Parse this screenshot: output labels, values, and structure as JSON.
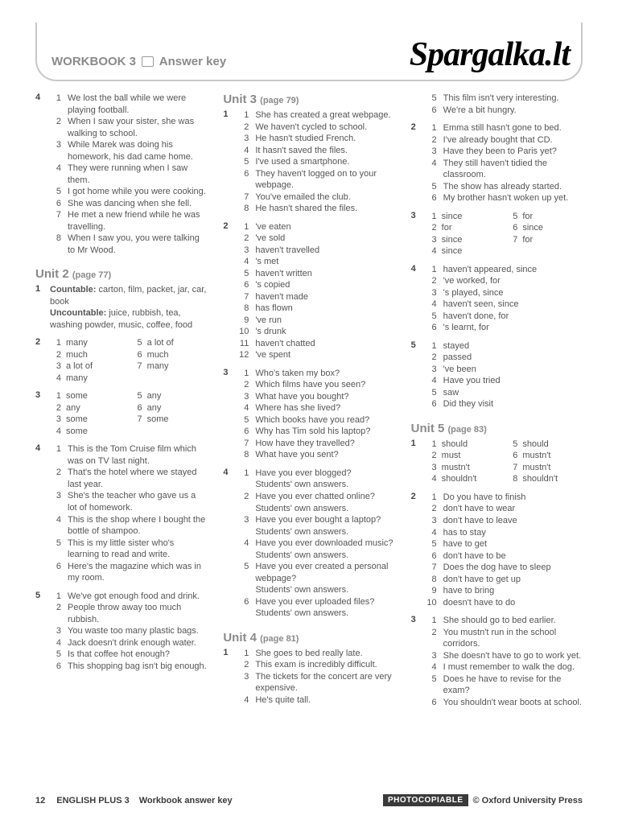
{
  "colors": {
    "text": "#555555",
    "heading_gray": "#8a8a8a",
    "border_gray": "#c8c8c8",
    "watermark": "#000000",
    "footer_dark": "#3a3a3a",
    "bg": "#ffffff"
  },
  "typography": {
    "body_pt": 11,
    "heading_pt": 15,
    "watermark_pt": 42,
    "line_height": 1.32
  },
  "header": {
    "workbook": "WORKBOOK 3",
    "answer_key": "Answer key"
  },
  "watermark": "Spargalka.lt",
  "footer": {
    "page_num": "12",
    "title1": "ENGLISH PLUS 3",
    "title2": "Workbook answer key",
    "photocopy": "PHOTOCOPIABLE",
    "copyright": "© Oxford University Press"
  },
  "col1": {
    "ex4": {
      "num": "4",
      "items": [
        [
          "1",
          "We lost the ball while we were playing football."
        ],
        [
          "2",
          "When I saw your sister, she was walking to school."
        ],
        [
          "3",
          "While Marek was doing his homework, his dad came home."
        ],
        [
          "4",
          "They were running when I saw them."
        ],
        [
          "5",
          "I got home while you were cooking."
        ],
        [
          "6",
          "She was dancing when she fell."
        ],
        [
          "7",
          "He met a new friend while he was travelling."
        ],
        [
          "8",
          "When I saw you, you were talking to Mr Wood."
        ]
      ]
    },
    "unit2": {
      "title": "Unit 2",
      "page": "(page 77)"
    },
    "u2e1": {
      "num": "1",
      "countable_lbl": "Countable:",
      "countable": " carton, film, packet, jar, car, book",
      "uncount_lbl": "Uncountable:",
      "uncount": " juice, rubbish, tea, washing powder, music, coffee, food"
    },
    "u2e2": {
      "num": "2",
      "pairs": [
        [
          "1",
          "many",
          "5",
          "a lot of"
        ],
        [
          "2",
          "much",
          "6",
          "much"
        ],
        [
          "3",
          "a lot of",
          "7",
          "many"
        ],
        [
          "4",
          "many",
          "",
          ""
        ]
      ]
    },
    "u2e3": {
      "num": "3",
      "pairs": [
        [
          "1",
          "some",
          "5",
          "any"
        ],
        [
          "2",
          "any",
          "6",
          "any"
        ],
        [
          "3",
          "some",
          "7",
          "some"
        ],
        [
          "4",
          "some",
          "",
          ""
        ]
      ]
    },
    "u2e4": {
      "num": "4",
      "items": [
        [
          "1",
          "This is the Tom Cruise film which was on TV last night."
        ],
        [
          "2",
          "That's the hotel where we stayed last year."
        ],
        [
          "3",
          "She's the teacher who gave us a lot of homework."
        ],
        [
          "4",
          "This is the shop where I bought the bottle of shampoo."
        ],
        [
          "5",
          "This is my little sister who's learning to read and write."
        ],
        [
          "6",
          "Here's the magazine which was in my room."
        ]
      ]
    },
    "u2e5": {
      "num": "5",
      "items": [
        [
          "1",
          "We've got enough food and drink."
        ],
        [
          "2",
          "People throw away too much rubbish."
        ],
        [
          "3",
          "You waste too many plastic bags."
        ],
        [
          "4",
          "Jack doesn't drink enough water."
        ],
        [
          "5",
          "Is that coffee hot enough?"
        ],
        [
          "6",
          "This shopping bag isn't big enough."
        ]
      ]
    }
  },
  "col2": {
    "unit3": {
      "title": "Unit 3",
      "page": "(page 79)"
    },
    "u3e1": {
      "num": "1",
      "items": [
        [
          "1",
          "She has created a great webpage."
        ],
        [
          "2",
          "We haven't cycled to school."
        ],
        [
          "3",
          "He hasn't studied French."
        ],
        [
          "4",
          "It hasn't saved the files."
        ],
        [
          "5",
          "I've used a smartphone."
        ],
        [
          "6",
          "They haven't logged on to your webpage."
        ],
        [
          "7",
          "You've emailed the club."
        ],
        [
          "8",
          "He hasn't shared the files."
        ]
      ]
    },
    "u3e2": {
      "num": "2",
      "items": [
        [
          "1",
          "'ve eaten"
        ],
        [
          "2",
          "'ve sold"
        ],
        [
          "3",
          "haven't travelled"
        ],
        [
          "4",
          "'s met"
        ],
        [
          "5",
          "haven't written"
        ],
        [
          "6",
          "'s copied"
        ],
        [
          "7",
          "haven't made"
        ],
        [
          "8",
          "has flown"
        ],
        [
          "9",
          "'ve run"
        ],
        [
          "10",
          "'s drunk"
        ],
        [
          "11",
          "haven't chatted"
        ],
        [
          "12",
          "'ve spent"
        ]
      ]
    },
    "u3e3": {
      "num": "3",
      "items": [
        [
          "1",
          "Who's taken my box?"
        ],
        [
          "2",
          "Which films have you seen?"
        ],
        [
          "3",
          "What have you bought?"
        ],
        [
          "4",
          "Where has she lived?"
        ],
        [
          "5",
          "Which books have you read?"
        ],
        [
          "6",
          "Why has Tim sold his laptop?"
        ],
        [
          "7",
          "How have they travelled?"
        ],
        [
          "8",
          "What have you sent?"
        ]
      ]
    },
    "u3e4": {
      "num": "4",
      "items": [
        [
          "1",
          "Have you ever blogged?"
        ],
        [
          "",
          "Students' own answers."
        ],
        [
          "2",
          "Have you ever chatted online?"
        ],
        [
          "",
          "Students' own answers."
        ],
        [
          "3",
          "Have you ever bought a laptop?"
        ],
        [
          "",
          "Students' own answers."
        ],
        [
          "4",
          "Have you ever downloaded music?"
        ],
        [
          "",
          "Students' own answers."
        ],
        [
          "5",
          "Have you ever created a personal webpage?"
        ],
        [
          "",
          "Students' own answers."
        ],
        [
          "6",
          "Have you ever uploaded files?"
        ],
        [
          "",
          "Students' own answers."
        ]
      ]
    },
    "unit4": {
      "title": "Unit 4",
      "page": "(page 81)"
    },
    "u4e1": {
      "num": "1",
      "items": [
        [
          "1",
          "She goes to bed really late."
        ],
        [
          "2",
          "This exam is incredibly difficult."
        ],
        [
          "3",
          "The tickets for the concert are very expensive."
        ],
        [
          "4",
          "He's quite tall."
        ]
      ]
    }
  },
  "col3": {
    "u4e1cont": {
      "items": [
        [
          "5",
          "This film isn't very interesting."
        ],
        [
          "6",
          "We're a bit hungry."
        ]
      ]
    },
    "u4e2": {
      "num": "2",
      "items": [
        [
          "1",
          "Emma still hasn't gone to bed."
        ],
        [
          "2",
          "I've already bought that CD."
        ],
        [
          "3",
          "Have they been to Paris yet?"
        ],
        [
          "4",
          "They still haven't tidied the classroom."
        ],
        [
          "5",
          "The show has already started."
        ],
        [
          "6",
          "My brother hasn't woken up yet."
        ]
      ]
    },
    "u4e3": {
      "num": "3",
      "pairs": [
        [
          "1",
          "since",
          "5",
          "for"
        ],
        [
          "2",
          "for",
          "6",
          "since"
        ],
        [
          "3",
          "since",
          "7",
          "for"
        ],
        [
          "4",
          "since",
          "",
          ""
        ]
      ]
    },
    "u4e4": {
      "num": "4",
      "items": [
        [
          "1",
          "haven't appeared, since"
        ],
        [
          "2",
          "'ve worked, for"
        ],
        [
          "3",
          "'s played, since"
        ],
        [
          "4",
          "haven't seen, since"
        ],
        [
          "5",
          "haven't done, for"
        ],
        [
          "6",
          "'s learnt, for"
        ]
      ]
    },
    "u4e5": {
      "num": "5",
      "items": [
        [
          "1",
          "stayed"
        ],
        [
          "2",
          "passed"
        ],
        [
          "3",
          "'ve been"
        ],
        [
          "4",
          "Have you tried"
        ],
        [
          "5",
          "saw"
        ],
        [
          "6",
          "Did they visit"
        ]
      ]
    },
    "unit5": {
      "title": "Unit 5",
      "page": "(page 83)"
    },
    "u5e1": {
      "num": "1",
      "pairs": [
        [
          "1",
          "should",
          "5",
          "should"
        ],
        [
          "2",
          "must",
          "6",
          "mustn't"
        ],
        [
          "3",
          "mustn't",
          "7",
          "mustn't"
        ],
        [
          "4",
          "shouldn't",
          "8",
          "shouldn't"
        ]
      ]
    },
    "u5e2": {
      "num": "2",
      "items": [
        [
          "1",
          "Do you have to finish"
        ],
        [
          "2",
          "don't have to wear"
        ],
        [
          "3",
          "don't have to leave"
        ],
        [
          "4",
          "has to stay"
        ],
        [
          "5",
          "have to get"
        ],
        [
          "6",
          "don't have to be"
        ],
        [
          "7",
          "Does the dog have to sleep"
        ],
        [
          "8",
          "don't have to get up"
        ],
        [
          "9",
          "have to bring"
        ],
        [
          "10",
          "doesn't have to do"
        ]
      ]
    },
    "u5e3": {
      "num": "3",
      "items": [
        [
          "1",
          "She should go to bed earlier."
        ],
        [
          "2",
          "You mustn't run in the school corridors."
        ],
        [
          "3",
          "She doesn't have to go to work yet."
        ],
        [
          "4",
          "I must remember to walk the dog."
        ],
        [
          "5",
          "Does he have to revise for the exam?"
        ],
        [
          "6",
          "You shouldn't wear boots at school."
        ]
      ]
    }
  }
}
